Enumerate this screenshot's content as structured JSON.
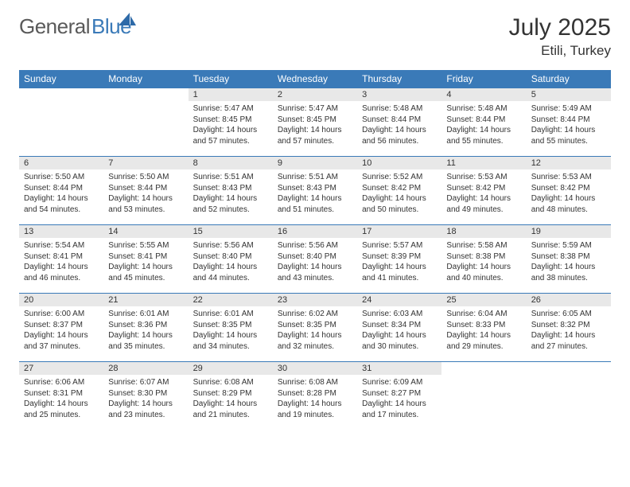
{
  "brand": {
    "word1": "General",
    "word2": "Blue"
  },
  "title": "July 2025",
  "location": "Etili, Turkey",
  "colors": {
    "header_bg": "#3a7ab8",
    "header_text": "#ffffff",
    "daynum_bg": "#e8e8e8",
    "border": "#3a7ab8",
    "text": "#333333",
    "logo_gray": "#5a5a5a",
    "logo_blue": "#3a7ab8"
  },
  "weekdays": [
    "Sunday",
    "Monday",
    "Tuesday",
    "Wednesday",
    "Thursday",
    "Friday",
    "Saturday"
  ],
  "weeks": [
    [
      null,
      null,
      {
        "day": "1",
        "sunrise": "Sunrise: 5:47 AM",
        "sunset": "Sunset: 8:45 PM",
        "daylight": "Daylight: 14 hours and 57 minutes."
      },
      {
        "day": "2",
        "sunrise": "Sunrise: 5:47 AM",
        "sunset": "Sunset: 8:45 PM",
        "daylight": "Daylight: 14 hours and 57 minutes."
      },
      {
        "day": "3",
        "sunrise": "Sunrise: 5:48 AM",
        "sunset": "Sunset: 8:44 PM",
        "daylight": "Daylight: 14 hours and 56 minutes."
      },
      {
        "day": "4",
        "sunrise": "Sunrise: 5:48 AM",
        "sunset": "Sunset: 8:44 PM",
        "daylight": "Daylight: 14 hours and 55 minutes."
      },
      {
        "day": "5",
        "sunrise": "Sunrise: 5:49 AM",
        "sunset": "Sunset: 8:44 PM",
        "daylight": "Daylight: 14 hours and 55 minutes."
      }
    ],
    [
      {
        "day": "6",
        "sunrise": "Sunrise: 5:50 AM",
        "sunset": "Sunset: 8:44 PM",
        "daylight": "Daylight: 14 hours and 54 minutes."
      },
      {
        "day": "7",
        "sunrise": "Sunrise: 5:50 AM",
        "sunset": "Sunset: 8:44 PM",
        "daylight": "Daylight: 14 hours and 53 minutes."
      },
      {
        "day": "8",
        "sunrise": "Sunrise: 5:51 AM",
        "sunset": "Sunset: 8:43 PM",
        "daylight": "Daylight: 14 hours and 52 minutes."
      },
      {
        "day": "9",
        "sunrise": "Sunrise: 5:51 AM",
        "sunset": "Sunset: 8:43 PM",
        "daylight": "Daylight: 14 hours and 51 minutes."
      },
      {
        "day": "10",
        "sunrise": "Sunrise: 5:52 AM",
        "sunset": "Sunset: 8:42 PM",
        "daylight": "Daylight: 14 hours and 50 minutes."
      },
      {
        "day": "11",
        "sunrise": "Sunrise: 5:53 AM",
        "sunset": "Sunset: 8:42 PM",
        "daylight": "Daylight: 14 hours and 49 minutes."
      },
      {
        "day": "12",
        "sunrise": "Sunrise: 5:53 AM",
        "sunset": "Sunset: 8:42 PM",
        "daylight": "Daylight: 14 hours and 48 minutes."
      }
    ],
    [
      {
        "day": "13",
        "sunrise": "Sunrise: 5:54 AM",
        "sunset": "Sunset: 8:41 PM",
        "daylight": "Daylight: 14 hours and 46 minutes."
      },
      {
        "day": "14",
        "sunrise": "Sunrise: 5:55 AM",
        "sunset": "Sunset: 8:41 PM",
        "daylight": "Daylight: 14 hours and 45 minutes."
      },
      {
        "day": "15",
        "sunrise": "Sunrise: 5:56 AM",
        "sunset": "Sunset: 8:40 PM",
        "daylight": "Daylight: 14 hours and 44 minutes."
      },
      {
        "day": "16",
        "sunrise": "Sunrise: 5:56 AM",
        "sunset": "Sunset: 8:40 PM",
        "daylight": "Daylight: 14 hours and 43 minutes."
      },
      {
        "day": "17",
        "sunrise": "Sunrise: 5:57 AM",
        "sunset": "Sunset: 8:39 PM",
        "daylight": "Daylight: 14 hours and 41 minutes."
      },
      {
        "day": "18",
        "sunrise": "Sunrise: 5:58 AM",
        "sunset": "Sunset: 8:38 PM",
        "daylight": "Daylight: 14 hours and 40 minutes."
      },
      {
        "day": "19",
        "sunrise": "Sunrise: 5:59 AM",
        "sunset": "Sunset: 8:38 PM",
        "daylight": "Daylight: 14 hours and 38 minutes."
      }
    ],
    [
      {
        "day": "20",
        "sunrise": "Sunrise: 6:00 AM",
        "sunset": "Sunset: 8:37 PM",
        "daylight": "Daylight: 14 hours and 37 minutes."
      },
      {
        "day": "21",
        "sunrise": "Sunrise: 6:01 AM",
        "sunset": "Sunset: 8:36 PM",
        "daylight": "Daylight: 14 hours and 35 minutes."
      },
      {
        "day": "22",
        "sunrise": "Sunrise: 6:01 AM",
        "sunset": "Sunset: 8:35 PM",
        "daylight": "Daylight: 14 hours and 34 minutes."
      },
      {
        "day": "23",
        "sunrise": "Sunrise: 6:02 AM",
        "sunset": "Sunset: 8:35 PM",
        "daylight": "Daylight: 14 hours and 32 minutes."
      },
      {
        "day": "24",
        "sunrise": "Sunrise: 6:03 AM",
        "sunset": "Sunset: 8:34 PM",
        "daylight": "Daylight: 14 hours and 30 minutes."
      },
      {
        "day": "25",
        "sunrise": "Sunrise: 6:04 AM",
        "sunset": "Sunset: 8:33 PM",
        "daylight": "Daylight: 14 hours and 29 minutes."
      },
      {
        "day": "26",
        "sunrise": "Sunrise: 6:05 AM",
        "sunset": "Sunset: 8:32 PM",
        "daylight": "Daylight: 14 hours and 27 minutes."
      }
    ],
    [
      {
        "day": "27",
        "sunrise": "Sunrise: 6:06 AM",
        "sunset": "Sunset: 8:31 PM",
        "daylight": "Daylight: 14 hours and 25 minutes."
      },
      {
        "day": "28",
        "sunrise": "Sunrise: 6:07 AM",
        "sunset": "Sunset: 8:30 PM",
        "daylight": "Daylight: 14 hours and 23 minutes."
      },
      {
        "day": "29",
        "sunrise": "Sunrise: 6:08 AM",
        "sunset": "Sunset: 8:29 PM",
        "daylight": "Daylight: 14 hours and 21 minutes."
      },
      {
        "day": "30",
        "sunrise": "Sunrise: 6:08 AM",
        "sunset": "Sunset: 8:28 PM",
        "daylight": "Daylight: 14 hours and 19 minutes."
      },
      {
        "day": "31",
        "sunrise": "Sunrise: 6:09 AM",
        "sunset": "Sunset: 8:27 PM",
        "daylight": "Daylight: 14 hours and 17 minutes."
      },
      null,
      null
    ]
  ]
}
